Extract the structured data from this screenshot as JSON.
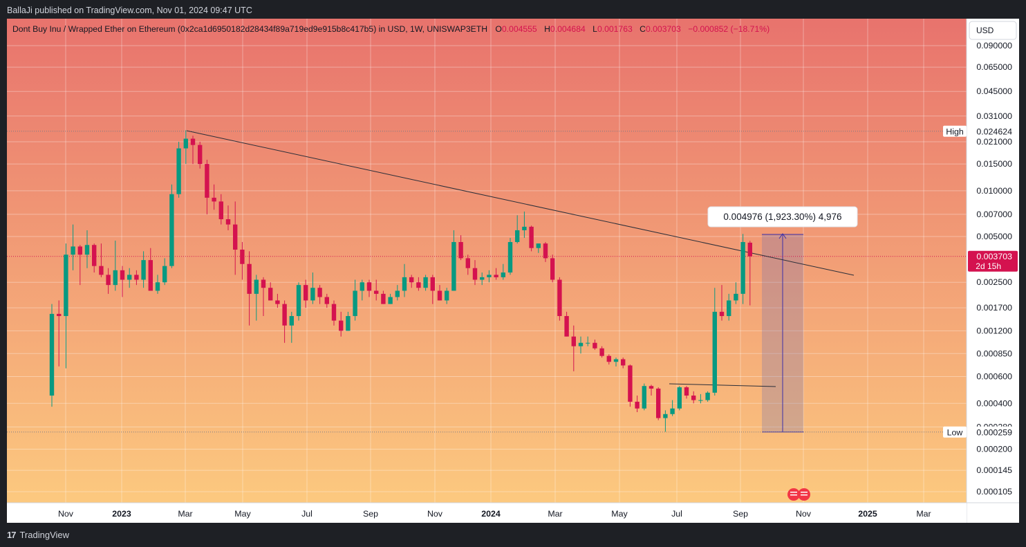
{
  "header": {
    "published": "BallaJi published on TradingView.com, Nov 01, 2024 09:47 UTC"
  },
  "legend": {
    "title": "Dont Buy Inu / Wrapped Ether on Ethereum (0x2ca1d6950182d28434f89a719ed9e915b8c417b5) in USD, 1W, UNISWAP3ETH",
    "o_label": "O",
    "o_value": "0.004555",
    "h_label": "H",
    "h_value": "0.004684",
    "l_label": "L",
    "l_value": "0.001763",
    "c_label": "C",
    "c_value": "0.003703",
    "change": "−0.000852 (−18.71%)"
  },
  "currency_button": "USD",
  "footer": {
    "brand": "TradingView"
  },
  "colors": {
    "up": "#089981",
    "down": "#d4124f",
    "bg_top": "#e8736d",
    "bg_bottom": "#fcc97f",
    "axis_bg": "#ffffff",
    "measure": "#3b2fa8"
  },
  "markers": {
    "high_label": "High",
    "high_value": "0.024624",
    "low_label": "Low",
    "low_value": "0.000259",
    "last_value": "0.003703",
    "countdown": "2d 15h",
    "measure_label": "0.004976 (1,923.30%) 4,976"
  },
  "chart_data": {
    "type": "candlestick",
    "y_scale": "log",
    "ylim": [
      9.2e-05,
      0.11
    ],
    "y_ticks": [
      "0.090000",
      "0.065000",
      "0.045000",
      "0.031000",
      "0.021000",
      "0.015000",
      "0.010000",
      "0.007000",
      "0.005000",
      "0.002500",
      "0.001700",
      "0.001200",
      "0.000850",
      "0.000600",
      "0.000400",
      "0.000280",
      "0.000200",
      "0.000145",
      "0.000105"
    ],
    "x_ticks": [
      "Nov",
      "2023",
      "Mar",
      "May",
      "Jul",
      "Sep",
      "Nov",
      "2024",
      "Mar",
      "May",
      "Jul",
      "Sep",
      "Nov",
      "2025",
      "Mar"
    ],
    "candles": [
      {
        "o": 0.00045,
        "h": 0.0018,
        "l": 0.00038,
        "c": 0.00155
      },
      {
        "o": 0.00155,
        "h": 0.0019,
        "l": 0.0007,
        "c": 0.0015
      },
      {
        "o": 0.0015,
        "h": 0.0045,
        "l": 0.00068,
        "c": 0.0038
      },
      {
        "o": 0.0038,
        "h": 0.006,
        "l": 0.003,
        "c": 0.0043
      },
      {
        "o": 0.0043,
        "h": 0.0044,
        "l": 0.0024,
        "c": 0.0038
      },
      {
        "o": 0.0038,
        "h": 0.0055,
        "l": 0.0031,
        "c": 0.0044
      },
      {
        "o": 0.0044,
        "h": 0.0045,
        "l": 0.0029,
        "c": 0.0032
      },
      {
        "o": 0.0032,
        "h": 0.0045,
        "l": 0.0027,
        "c": 0.0028
      },
      {
        "o": 0.0028,
        "h": 0.0031,
        "l": 0.0021,
        "c": 0.0024
      },
      {
        "o": 0.0024,
        "h": 0.0047,
        "l": 0.0022,
        "c": 0.003
      },
      {
        "o": 0.003,
        "h": 0.0032,
        "l": 0.002,
        "c": 0.0026
      },
      {
        "o": 0.0026,
        "h": 0.0031,
        "l": 0.0023,
        "c": 0.0028
      },
      {
        "o": 0.0028,
        "h": 0.003,
        "l": 0.0024,
        "c": 0.0026
      },
      {
        "o": 0.0026,
        "h": 0.004,
        "l": 0.0023,
        "c": 0.0035
      },
      {
        "o": 0.0035,
        "h": 0.0042,
        "l": 0.0022,
        "c": 0.0022
      },
      {
        "o": 0.0022,
        "h": 0.0028,
        "l": 0.0021,
        "c": 0.0025
      },
      {
        "o": 0.0025,
        "h": 0.0036,
        "l": 0.0024,
        "c": 0.0032
      },
      {
        "o": 0.0032,
        "h": 0.011,
        "l": 0.0031,
        "c": 0.0095
      },
      {
        "o": 0.0095,
        "h": 0.021,
        "l": 0.009,
        "c": 0.019
      },
      {
        "o": 0.019,
        "h": 0.025,
        "l": 0.015,
        "c": 0.022
      },
      {
        "o": 0.022,
        "h": 0.023,
        "l": 0.015,
        "c": 0.02
      },
      {
        "o": 0.02,
        "h": 0.021,
        "l": 0.014,
        "c": 0.015
      },
      {
        "o": 0.015,
        "h": 0.016,
        "l": 0.007,
        "c": 0.009
      },
      {
        "o": 0.009,
        "h": 0.011,
        "l": 0.0075,
        "c": 0.0085
      },
      {
        "o": 0.0085,
        "h": 0.0095,
        "l": 0.006,
        "c": 0.0065
      },
      {
        "o": 0.0065,
        "h": 0.008,
        "l": 0.0055,
        "c": 0.006
      },
      {
        "o": 0.006,
        "h": 0.0085,
        "l": 0.0028,
        "c": 0.0041
      },
      {
        "o": 0.0041,
        "h": 0.0046,
        "l": 0.0026,
        "c": 0.0033
      },
      {
        "o": 0.0033,
        "h": 0.004,
        "l": 0.0013,
        "c": 0.0021
      },
      {
        "o": 0.0021,
        "h": 0.0028,
        "l": 0.0014,
        "c": 0.0026
      },
      {
        "o": 0.0026,
        "h": 0.0027,
        "l": 0.0015,
        "c": 0.0023
      },
      {
        "o": 0.0023,
        "h": 0.0025,
        "l": 0.0019,
        "c": 0.0019
      },
      {
        "o": 0.0019,
        "h": 0.0021,
        "l": 0.0017,
        "c": 0.0018
      },
      {
        "o": 0.0018,
        "h": 0.0019,
        "l": 0.001,
        "c": 0.0013
      },
      {
        "o": 0.0013,
        "h": 0.0016,
        "l": 0.001,
        "c": 0.0015
      },
      {
        "o": 0.0015,
        "h": 0.0025,
        "l": 0.0014,
        "c": 0.0024
      },
      {
        "o": 0.0024,
        "h": 0.0026,
        "l": 0.0017,
        "c": 0.0019
      },
      {
        "o": 0.0019,
        "h": 0.0029,
        "l": 0.0018,
        "c": 0.0023
      },
      {
        "o": 0.0023,
        "h": 0.0024,
        "l": 0.0018,
        "c": 0.002
      },
      {
        "o": 0.002,
        "h": 0.0021,
        "l": 0.0017,
        "c": 0.0018
      },
      {
        "o": 0.0018,
        "h": 0.0019,
        "l": 0.0013,
        "c": 0.0014
      },
      {
        "o": 0.0014,
        "h": 0.0016,
        "l": 0.0011,
        "c": 0.0012
      },
      {
        "o": 0.0012,
        "h": 0.0016,
        "l": 0.0012,
        "c": 0.0015
      },
      {
        "o": 0.0015,
        "h": 0.0026,
        "l": 0.0014,
        "c": 0.0022
      },
      {
        "o": 0.0022,
        "h": 0.0026,
        "l": 0.0019,
        "c": 0.0025
      },
      {
        "o": 0.0025,
        "h": 0.0026,
        "l": 0.002,
        "c": 0.0022
      },
      {
        "o": 0.0022,
        "h": 0.0026,
        "l": 0.0019,
        "c": 0.0021
      },
      {
        "o": 0.0021,
        "h": 0.0022,
        "l": 0.0018,
        "c": 0.0018
      },
      {
        "o": 0.0018,
        "h": 0.0021,
        "l": 0.0018,
        "c": 0.002
      },
      {
        "o": 0.002,
        "h": 0.0024,
        "l": 0.0019,
        "c": 0.0022
      },
      {
        "o": 0.0022,
        "h": 0.0033,
        "l": 0.002,
        "c": 0.0027
      },
      {
        "o": 0.0027,
        "h": 0.0028,
        "l": 0.0023,
        "c": 0.0025
      },
      {
        "o": 0.0025,
        "h": 0.0027,
        "l": 0.0022,
        "c": 0.0023
      },
      {
        "o": 0.0023,
        "h": 0.0028,
        "l": 0.0022,
        "c": 0.0027
      },
      {
        "o": 0.0027,
        "h": 0.0028,
        "l": 0.0018,
        "c": 0.0022
      },
      {
        "o": 0.0022,
        "h": 0.0024,
        "l": 0.0019,
        "c": 0.0019
      },
      {
        "o": 0.0019,
        "h": 0.0023,
        "l": 0.0018,
        "c": 0.0022
      },
      {
        "o": 0.0022,
        "h": 0.0055,
        "l": 0.0022,
        "c": 0.0046
      },
      {
        "o": 0.0046,
        "h": 0.0051,
        "l": 0.0035,
        "c": 0.0036
      },
      {
        "o": 0.0036,
        "h": 0.0038,
        "l": 0.0028,
        "c": 0.0031
      },
      {
        "o": 0.0031,
        "h": 0.0035,
        "l": 0.0024,
        "c": 0.0026
      },
      {
        "o": 0.0026,
        "h": 0.0029,
        "l": 0.0024,
        "c": 0.0027
      },
      {
        "o": 0.0027,
        "h": 0.003,
        "l": 0.0025,
        "c": 0.0028
      },
      {
        "o": 0.0028,
        "h": 0.0031,
        "l": 0.0026,
        "c": 0.0027
      },
      {
        "o": 0.0027,
        "h": 0.0033,
        "l": 0.0026,
        "c": 0.0029
      },
      {
        "o": 0.0029,
        "h": 0.0049,
        "l": 0.0028,
        "c": 0.0046
      },
      {
        "o": 0.0046,
        "h": 0.0069,
        "l": 0.0045,
        "c": 0.0055
      },
      {
        "o": 0.0055,
        "h": 0.0073,
        "l": 0.0049,
        "c": 0.0058
      },
      {
        "o": 0.0058,
        "h": 0.0059,
        "l": 0.004,
        "c": 0.0042
      },
      {
        "o": 0.0042,
        "h": 0.0045,
        "l": 0.0039,
        "c": 0.0045
      },
      {
        "o": 0.0045,
        "h": 0.0046,
        "l": 0.0034,
        "c": 0.0036
      },
      {
        "o": 0.0036,
        "h": 0.0038,
        "l": 0.0025,
        "c": 0.0026
      },
      {
        "o": 0.0026,
        "h": 0.0027,
        "l": 0.0014,
        "c": 0.0015
      },
      {
        "o": 0.0015,
        "h": 0.0016,
        "l": 0.0011,
        "c": 0.0011
      },
      {
        "o": 0.0011,
        "h": 0.0013,
        "l": 0.00065,
        "c": 0.00095
      },
      {
        "o": 0.00095,
        "h": 0.0011,
        "l": 0.00085,
        "c": 0.001
      },
      {
        "o": 0.001,
        "h": 0.0011,
        "l": 0.00095,
        "c": 0.001
      },
      {
        "o": 0.001,
        "h": 0.00105,
        "l": 0.0009,
        "c": 0.00092
      },
      {
        "o": 0.00092,
        "h": 0.00095,
        "l": 0.0008,
        "c": 0.00082
      },
      {
        "o": 0.00082,
        "h": 0.00084,
        "l": 0.00072,
        "c": 0.00075
      },
      {
        "o": 0.00075,
        "h": 0.0008,
        "l": 0.0007,
        "c": 0.00078
      },
      {
        "o": 0.00078,
        "h": 0.0008,
        "l": 0.00068,
        "c": 0.00071
      },
      {
        "o": 0.00071,
        "h": 0.00072,
        "l": 0.00038,
        "c": 0.00041
      },
      {
        "o": 0.00041,
        "h": 0.00045,
        "l": 0.00035,
        "c": 0.00037
      },
      {
        "o": 0.00037,
        "h": 0.00054,
        "l": 0.00036,
        "c": 0.00052
      },
      {
        "o": 0.00052,
        "h": 0.00053,
        "l": 0.00045,
        "c": 0.0005
      },
      {
        "o": 0.0005,
        "h": 0.00051,
        "l": 0.00031,
        "c": 0.00032
      },
      {
        "o": 0.00032,
        "h": 0.00036,
        "l": 0.00026,
        "c": 0.00034
      },
      {
        "o": 0.00034,
        "h": 0.00042,
        "l": 0.00033,
        "c": 0.00037
      },
      {
        "o": 0.00037,
        "h": 0.00052,
        "l": 0.00036,
        "c": 0.00051
      },
      {
        "o": 0.00051,
        "h": 0.00052,
        "l": 0.00043,
        "c": 0.00045
      },
      {
        "o": 0.00045,
        "h": 0.00048,
        "l": 0.0004,
        "c": 0.00042
      },
      {
        "o": 0.00042,
        "h": 0.00046,
        "l": 0.0004,
        "c": 0.00042
      },
      {
        "o": 0.00042,
        "h": 0.00048,
        "l": 0.00041,
        "c": 0.00047
      },
      {
        "o": 0.00047,
        "h": 0.0023,
        "l": 0.00045,
        "c": 0.0016
      },
      {
        "o": 0.0016,
        "h": 0.0024,
        "l": 0.0014,
        "c": 0.0015
      },
      {
        "o": 0.0015,
        "h": 0.0021,
        "l": 0.0014,
        "c": 0.0019
      },
      {
        "o": 0.0019,
        "h": 0.0025,
        "l": 0.0018,
        "c": 0.0021
      },
      {
        "o": 0.0021,
        "h": 0.0052,
        "l": 0.0018,
        "c": 0.0046
      },
      {
        "o": 0.004555,
        "h": 0.004684,
        "l": 0.001763,
        "c": 0.003703
      }
    ]
  }
}
